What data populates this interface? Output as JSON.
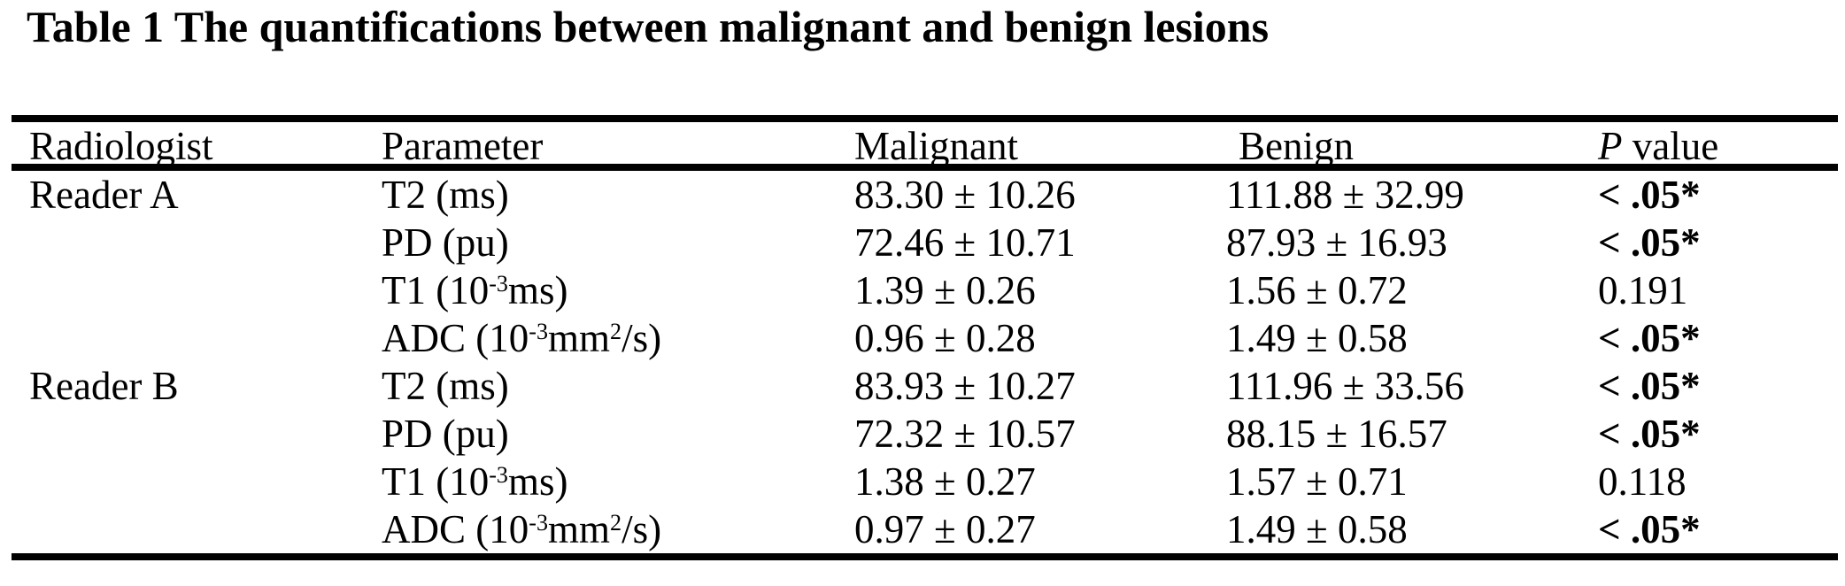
{
  "title": "Table 1 The quantifications between malignant and benign lesions",
  "table": {
    "headers": [
      {
        "segments": [
          [
            "Radiologist",
            "n"
          ]
        ]
      },
      {
        "segments": [
          [
            "Parameter",
            "n"
          ]
        ]
      },
      {
        "segments": [
          [
            "Malignant",
            "n"
          ]
        ]
      },
      {
        "segments": [
          [
            "Benign",
            "n"
          ]
        ]
      },
      {
        "segments": [
          [
            "P",
            "i"
          ],
          [
            " value",
            "n"
          ]
        ]
      }
    ],
    "rows": [
      {
        "radiologist": "Reader A",
        "parameter": [
          [
            "T2 (ms)",
            "n"
          ]
        ],
        "malignant": "83.30 ± 10.26",
        "benign": "111.88 ± 32.99",
        "p_value": "< .05*",
        "significant": true
      },
      {
        "radiologist": "",
        "parameter": [
          [
            "PD (pu)",
            "n"
          ]
        ],
        "malignant": "72.46 ± 10.71",
        "benign": "87.93 ± 16.93",
        "p_value": "< .05*",
        "significant": true
      },
      {
        "radiologist": "",
        "parameter": [
          [
            "T1 (10",
            "n"
          ],
          [
            "-3",
            "s"
          ],
          [
            "ms)",
            "n"
          ]
        ],
        "malignant": "1.39 ± 0.26",
        "benign": "1.56 ± 0.72",
        "p_value": "0.191",
        "significant": false
      },
      {
        "radiologist": "",
        "parameter": [
          [
            "ADC (10",
            "n"
          ],
          [
            "-3",
            "s"
          ],
          [
            "mm",
            "n"
          ],
          [
            "2",
            "s"
          ],
          [
            "/s)",
            "n"
          ]
        ],
        "malignant": "0.96 ± 0.28",
        "benign": "1.49 ± 0.58",
        "p_value": "< .05*",
        "significant": true
      },
      {
        "radiologist": "Reader B",
        "parameter": [
          [
            "T2 (ms)",
            "n"
          ]
        ],
        "malignant": "83.93 ± 10.27",
        "benign": "111.96 ± 33.56",
        "p_value": "< .05*",
        "significant": true
      },
      {
        "radiologist": "",
        "parameter": [
          [
            "PD (pu)",
            "n"
          ]
        ],
        "malignant": "72.32 ± 10.57",
        "benign": "88.15 ± 16.57",
        "p_value": "< .05*",
        "significant": true
      },
      {
        "radiologist": "",
        "parameter": [
          [
            "T1 (10",
            "n"
          ],
          [
            "-3",
            "s"
          ],
          [
            "ms)",
            "n"
          ]
        ],
        "malignant": "1.38 ± 0.27",
        "benign": "1.57 ± 0.71",
        "p_value": "0.118",
        "significant": false
      },
      {
        "radiologist": "",
        "parameter": [
          [
            "ADC (10",
            "n"
          ],
          [
            "-3",
            "s"
          ],
          [
            "mm",
            "n"
          ],
          [
            "2",
            "s"
          ],
          [
            "/s)",
            "n"
          ]
        ],
        "malignant": "0.97 ± 0.27",
        "benign": "1.49 ± 0.58",
        "p_value": "< .05*",
        "significant": true
      }
    ]
  }
}
